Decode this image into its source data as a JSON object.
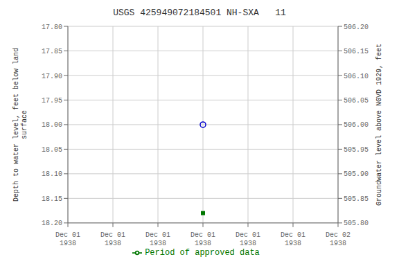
{
  "chart_data": {
    "type": "scatter",
    "title": "USGS 425949072184501 NH-SXA   11",
    "ylabel": "Depth to water level, feet below land\n surface",
    "y2label": "Groundwater level above NGVD 1929, feet",
    "categories": [
      "Dec 01\n1938",
      "Dec 01\n1938",
      "Dec 01\n1938",
      "Dec 01\n1938",
      "Dec 01\n1938",
      "Dec 01\n1938",
      "Dec 02\n1938"
    ],
    "series": [
      {
        "color": "#0000cc",
        "marker": "circle",
        "values": [
          null,
          null,
          null,
          18.0,
          null,
          null,
          null
        ]
      },
      {
        "name": "Period of approved data",
        "color": "#007700",
        "marker": "square",
        "values": [
          null,
          null,
          null,
          18.18,
          null,
          null,
          null
        ]
      }
    ],
    "ylim": [
      18.2,
      17.8
    ],
    "yticks": [
      {
        "value": 17.8,
        "label": "17.80"
      },
      17.85,
      {
        "value": 17.9,
        "label": "17.90"
      },
      17.95,
      {
        "value": 18.0,
        "label": "18.00"
      },
      18.05,
      {
        "value": 18.1,
        "label": "18.10"
      },
      18.15,
      {
        "value": 18.2,
        "label": "18.20"
      }
    ],
    "y2lim": [
      505.8,
      506.2
    ],
    "y2ticks": [
      {
        "value": 506.2,
        "label": "506.20"
      },
      506.15,
      {
        "value": 506.1,
        "label": "506.10"
      },
      506.05,
      {
        "value": 506.0,
        "label": "506.00"
      },
      505.95,
      {
        "value": 505.9,
        "label": "505.90"
      },
      505.85,
      {
        "value": 505.8,
        "label": "505.80"
      }
    ],
    "grid": true,
    "legend": "bottom"
  }
}
